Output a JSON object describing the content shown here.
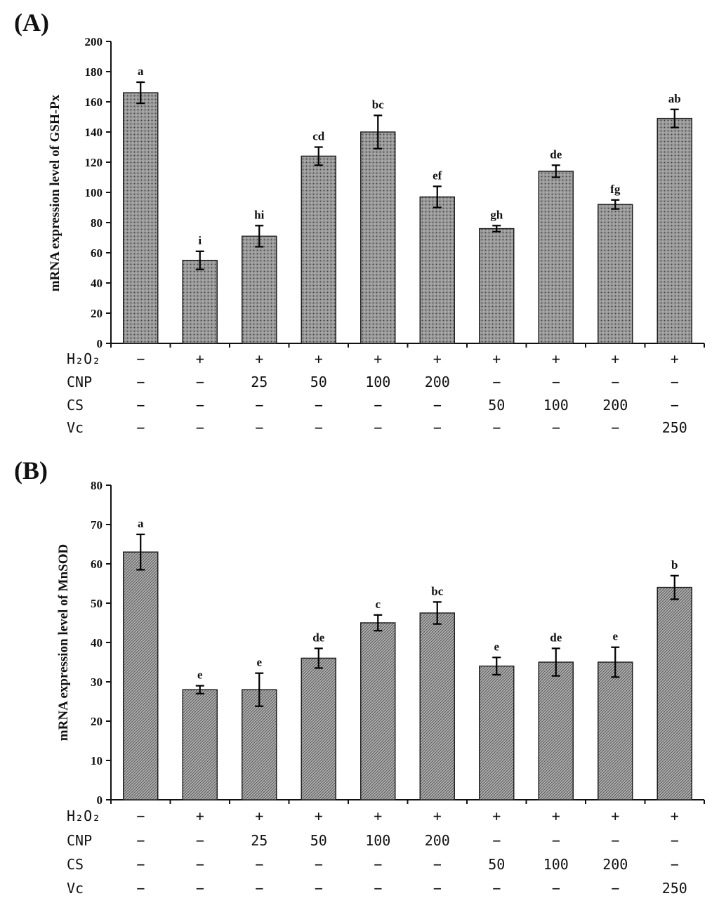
{
  "chart_data": [
    {
      "panel": "(A)",
      "type": "bar",
      "ylabel": "mRNA expression level of GSH-Px",
      "ylim": [
        0,
        200
      ],
      "yticks": [
        0,
        20,
        40,
        60,
        80,
        100,
        120,
        140,
        160,
        180,
        200
      ],
      "values": [
        166,
        55,
        71,
        124,
        140,
        97,
        76,
        114,
        92,
        149
      ],
      "errors": [
        7,
        6,
        7,
        6,
        11,
        7,
        2,
        4,
        3,
        6
      ],
      "significance": [
        "a",
        "i",
        "hi",
        "cd",
        "bc",
        "ef",
        "gh",
        "de",
        "fg",
        "ab"
      ],
      "pattern": "dots",
      "treatments": [
        {
          "name": "H₂O₂",
          "values": [
            "−",
            "+",
            "+",
            "+",
            "+",
            "+",
            "+",
            "+",
            "+",
            "+"
          ]
        },
        {
          "name": "CNP",
          "values": [
            "−",
            "−",
            "25",
            "50",
            "100",
            "200",
            "−",
            "−",
            "−",
            "−"
          ]
        },
        {
          "name": "CS",
          "values": [
            "−",
            "−",
            "−",
            "−",
            "−",
            "−",
            "50",
            "100",
            "200",
            "−"
          ]
        },
        {
          "name": "Vc",
          "values": [
            "−",
            "−",
            "−",
            "−",
            "−",
            "−",
            "−",
            "−",
            "−",
            "250"
          ]
        }
      ]
    },
    {
      "panel": "(B)",
      "type": "bar",
      "ylabel": "mRNA expression level of MnSOD",
      "ylim": [
        0,
        80
      ],
      "yticks": [
        0,
        10,
        20,
        30,
        40,
        50,
        60,
        70,
        80
      ],
      "values": [
        63,
        28,
        28,
        36,
        45,
        47.5,
        34,
        35,
        35,
        54
      ],
      "errors": [
        4.5,
        1,
        4.2,
        2.5,
        2,
        2.8,
        2.2,
        3.5,
        3.8,
        3
      ],
      "significance": [
        "a",
        "e",
        "e",
        "de",
        "c",
        "bc",
        "e",
        "de",
        "e",
        "b"
      ],
      "pattern": "hatch",
      "treatments": [
        {
          "name": "H₂O₂",
          "values": [
            "−",
            "+",
            "+",
            "+",
            "+",
            "+",
            "+",
            "+",
            "+",
            "+"
          ]
        },
        {
          "name": "CNP",
          "values": [
            "−",
            "−",
            "25",
            "50",
            "100",
            "200",
            "−",
            "−",
            "−",
            "−"
          ]
        },
        {
          "name": "CS",
          "values": [
            "−",
            "−",
            "−",
            "−",
            "−",
            "−",
            "50",
            "100",
            "200",
            "−"
          ]
        },
        {
          "name": "Vc",
          "values": [
            "−",
            "−",
            "−",
            "−",
            "−",
            "−",
            "−",
            "−",
            "−",
            "250"
          ]
        }
      ]
    }
  ]
}
